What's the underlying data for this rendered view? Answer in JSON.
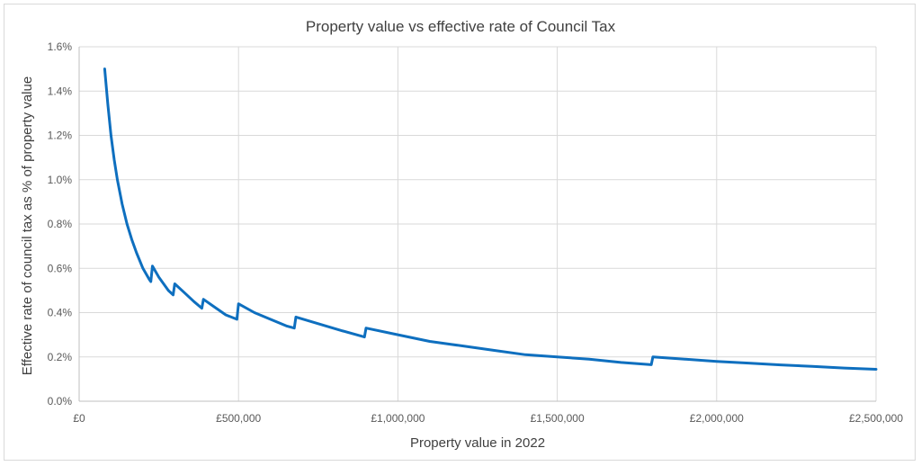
{
  "chart_data": {
    "type": "line",
    "title": "Property value vs effective rate of Council Tax",
    "xlabel": "Property value in 2022",
    "ylabel": "Effective rate of council tax as % of property value",
    "xlim": [
      0,
      2500000
    ],
    "ylim": [
      0,
      1.6
    ],
    "x_tick_labels": [
      "£0",
      "£500,000",
      "£1,000,000",
      "£1,500,000",
      "£2,000,000",
      "£2,500,000"
    ],
    "x_ticks": [
      0,
      500000,
      1000000,
      1500000,
      2000000,
      2500000
    ],
    "y_tick_labels": [
      "0.0%",
      "0.2%",
      "0.4%",
      "0.6%",
      "0.8%",
      "1.0%",
      "1.2%",
      "1.4%",
      "1.6%"
    ],
    "y_ticks": [
      0,
      0.2,
      0.4,
      0.6,
      0.8,
      1.0,
      1.2,
      1.4,
      1.6
    ],
    "grid": true,
    "legend": "none",
    "series": [
      {
        "color": "#0e6fbf",
        "points": [
          [
            80000,
            1.5
          ],
          [
            90000,
            1.34
          ],
          [
            100000,
            1.2
          ],
          [
            110000,
            1.09
          ],
          [
            120000,
            1.0
          ],
          [
            135000,
            0.89
          ],
          [
            150000,
            0.8
          ],
          [
            165000,
            0.73
          ],
          [
            180000,
            0.67
          ],
          [
            200000,
            0.6
          ],
          [
            220000,
            0.55
          ],
          [
            225000,
            0.54
          ],
          [
            230000,
            0.61
          ],
          [
            250000,
            0.56
          ],
          [
            280000,
            0.5
          ],
          [
            295000,
            0.48
          ],
          [
            300000,
            0.53
          ],
          [
            330000,
            0.49
          ],
          [
            360000,
            0.45
          ],
          [
            385000,
            0.42
          ],
          [
            390000,
            0.46
          ],
          [
            420000,
            0.43
          ],
          [
            460000,
            0.39
          ],
          [
            495000,
            0.37
          ],
          [
            500000,
            0.44
          ],
          [
            550000,
            0.4
          ],
          [
            600000,
            0.37
          ],
          [
            650000,
            0.34
          ],
          [
            675000,
            0.33
          ],
          [
            680000,
            0.38
          ],
          [
            750000,
            0.35
          ],
          [
            820000,
            0.32
          ],
          [
            895000,
            0.29
          ],
          [
            900000,
            0.33
          ],
          [
            1000000,
            0.3
          ],
          [
            1100000,
            0.27
          ],
          [
            1200000,
            0.25
          ],
          [
            1300000,
            0.23
          ],
          [
            1400000,
            0.21
          ],
          [
            1500000,
            0.2
          ],
          [
            1600000,
            0.19
          ],
          [
            1700000,
            0.175
          ],
          [
            1795000,
            0.165
          ],
          [
            1800000,
            0.2
          ],
          [
            1900000,
            0.19
          ],
          [
            2000000,
            0.18
          ],
          [
            2100000,
            0.172
          ],
          [
            2200000,
            0.164
          ],
          [
            2300000,
            0.157
          ],
          [
            2400000,
            0.15
          ],
          [
            2500000,
            0.144
          ]
        ]
      }
    ]
  }
}
